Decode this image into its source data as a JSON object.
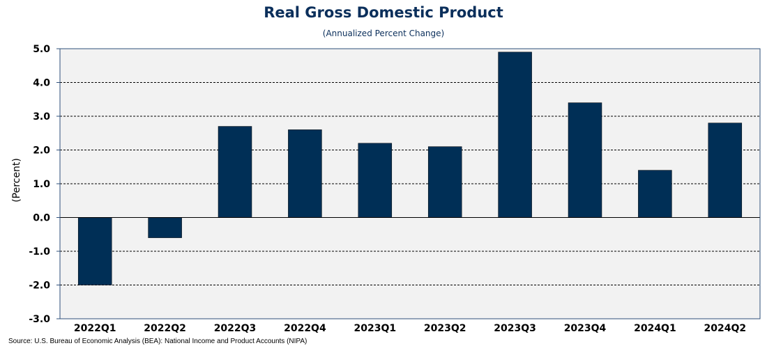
{
  "title": "Real Gross Domestic Product",
  "subtitle": "(Annualized Percent Change)",
  "source": "Source: U.S. Bureau of Economic Analysis (BEA): National Income and Product Accounts (NIPA)",
  "colors": {
    "bar": "#002f56",
    "plot_bg": "#f2f2f2",
    "frame": "#2e4f7a"
  },
  "chart_data": {
    "type": "bar",
    "title": "Real Gross Domestic Product",
    "subtitle": "(Annualized Percent Change)",
    "xlabel": "",
    "ylabel": "(Percent)",
    "categories": [
      "2022Q1",
      "2022Q2",
      "2022Q3",
      "2022Q4",
      "2023Q1",
      "2023Q2",
      "2023Q3",
      "2023Q4",
      "2024Q1",
      "2024Q2"
    ],
    "values": [
      -2.0,
      -0.6,
      2.7,
      2.6,
      2.2,
      2.1,
      4.9,
      3.4,
      1.4,
      2.8
    ],
    "ylim": [
      -3.0,
      5.0
    ],
    "yticks": [
      5.0,
      4.0,
      3.0,
      2.0,
      1.0,
      0.0,
      -1.0,
      -2.0,
      -3.0
    ],
    "ytick_labels": [
      "5.0",
      "4.0",
      "3.0",
      "2.0",
      "1.0",
      "0.0",
      "-1.0",
      "-2.0",
      "-3.0"
    ],
    "grid": true,
    "legend": "none"
  }
}
